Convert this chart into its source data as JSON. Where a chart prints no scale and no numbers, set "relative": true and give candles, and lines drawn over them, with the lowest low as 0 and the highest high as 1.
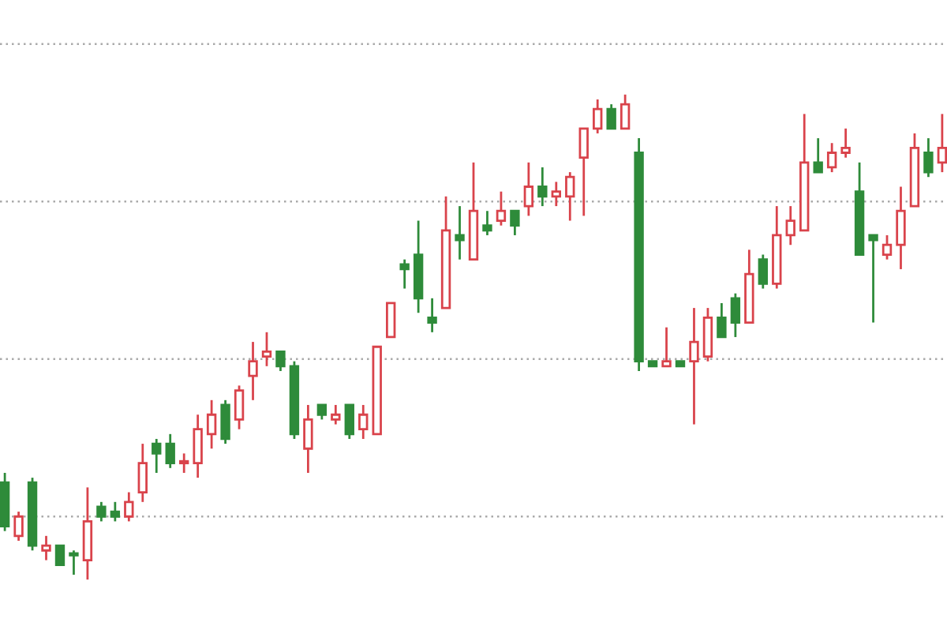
{
  "chart_data": {
    "type": "candlestick",
    "relative": true,
    "grid": true,
    "categories": [
      null,
      null,
      null,
      null,
      null,
      null,
      null,
      null,
      null,
      null,
      null,
      null,
      null,
      null,
      null,
      null,
      null,
      null,
      null,
      null,
      null,
      null,
      null,
      null,
      null,
      null,
      null,
      null,
      null,
      null,
      null,
      null,
      null,
      null,
      null,
      null,
      null,
      null,
      null,
      null,
      null,
      null,
      null,
      null,
      null,
      null,
      null,
      null,
      null,
      null,
      null,
      null,
      null,
      null,
      null,
      null,
      null,
      null,
      null,
      null,
      null,
      null,
      null,
      null,
      null,
      null,
      null,
      null,
      null
    ],
    "ohlc": [
      [
        0.2,
        0.22,
        0.1,
        0.11
      ],
      [
        0.09,
        0.14,
        0.08,
        0.13
      ],
      [
        0.2,
        0.21,
        0.06,
        0.07
      ],
      [
        0.06,
        0.09,
        0.04,
        0.07
      ],
      [
        0.07,
        0.07,
        0.03,
        0.03
      ],
      [
        0.05,
        0.06,
        0.01,
        0.05
      ],
      [
        0.04,
        0.19,
        0.0,
        0.12
      ],
      [
        0.15,
        0.16,
        0.12,
        0.13
      ],
      [
        0.14,
        0.16,
        0.12,
        0.13
      ],
      [
        0.13,
        0.18,
        0.12,
        0.16
      ],
      [
        0.18,
        0.28,
        0.16,
        0.24
      ],
      [
        0.28,
        0.29,
        0.22,
        0.26
      ],
      [
        0.28,
        0.3,
        0.23,
        0.24
      ],
      [
        0.24,
        0.26,
        0.22,
        0.24
      ],
      [
        0.24,
        0.34,
        0.21,
        0.31
      ],
      [
        0.3,
        0.37,
        0.27,
        0.34
      ],
      [
        0.36,
        0.37,
        0.28,
        0.29
      ],
      [
        0.33,
        0.4,
        0.31,
        0.39
      ],
      [
        0.42,
        0.49,
        0.37,
        0.45
      ],
      [
        0.46,
        0.51,
        0.44,
        0.47
      ],
      [
        0.47,
        0.47,
        0.43,
        0.44
      ],
      [
        0.44,
        0.45,
        0.29,
        0.3
      ],
      [
        0.27,
        0.36,
        0.22,
        0.33
      ],
      [
        0.36,
        0.36,
        0.33,
        0.34
      ],
      [
        0.33,
        0.36,
        0.32,
        0.34
      ],
      [
        0.36,
        0.36,
        0.29,
        0.3
      ],
      [
        0.31,
        0.36,
        0.29,
        0.34
      ],
      [
        0.3,
        0.48,
        0.3,
        0.48
      ],
      [
        0.5,
        0.57,
        0.5,
        0.57
      ],
      [
        0.65,
        0.66,
        0.6,
        0.64
      ],
      [
        0.67,
        0.74,
        0.55,
        0.58
      ],
      [
        0.54,
        0.58,
        0.51,
        0.53
      ],
      [
        0.56,
        0.79,
        0.56,
        0.72
      ],
      [
        0.71,
        0.77,
        0.66,
        0.7
      ],
      [
        0.66,
        0.86,
        0.66,
        0.76
      ],
      [
        0.73,
        0.76,
        0.71,
        0.72
      ],
      [
        0.74,
        0.8,
        0.73,
        0.76
      ],
      [
        0.76,
        0.76,
        0.71,
        0.73
      ],
      [
        0.77,
        0.86,
        0.75,
        0.81
      ],
      [
        0.81,
        0.85,
        0.77,
        0.79
      ],
      [
        0.79,
        0.82,
        0.77,
        0.8
      ],
      [
        0.79,
        0.84,
        0.74,
        0.83
      ],
      [
        0.87,
        0.93,
        0.75,
        0.93
      ],
      [
        0.93,
        0.99,
        0.92,
        0.97
      ],
      [
        0.97,
        0.98,
        0.93,
        0.93
      ],
      [
        0.93,
        1.0,
        0.93,
        0.98
      ],
      [
        0.88,
        0.91,
        0.43,
        0.45
      ],
      [
        0.45,
        0.45,
        0.44,
        0.44
      ],
      [
        0.44,
        0.52,
        0.44,
        0.45
      ],
      [
        0.45,
        0.45,
        0.44,
        0.44
      ],
      [
        0.45,
        0.56,
        0.32,
        0.49
      ],
      [
        0.46,
        0.56,
        0.45,
        0.54
      ],
      [
        0.54,
        0.57,
        0.5,
        0.5
      ],
      [
        0.58,
        0.59,
        0.5,
        0.53
      ],
      [
        0.53,
        0.68,
        0.53,
        0.63
      ],
      [
        0.66,
        0.67,
        0.6,
        0.61
      ],
      [
        0.61,
        0.77,
        0.6,
        0.71
      ],
      [
        0.71,
        0.77,
        0.69,
        0.74
      ],
      [
        0.72,
        0.96,
        0.72,
        0.86
      ],
      [
        0.86,
        0.91,
        0.84,
        0.84
      ],
      [
        0.85,
        0.9,
        0.84,
        0.88
      ],
      [
        0.88,
        0.93,
        0.87,
        0.89
      ],
      [
        0.8,
        0.86,
        0.67,
        0.67
      ],
      [
        0.71,
        0.71,
        0.53,
        0.7
      ],
      [
        0.67,
        0.71,
        0.66,
        0.69
      ],
      [
        0.69,
        0.81,
        0.64,
        0.76
      ],
      [
        0.77,
        0.92,
        0.77,
        0.89
      ],
      [
        0.88,
        0.91,
        0.83,
        0.84
      ],
      [
        0.86,
        0.96,
        0.84,
        0.89
      ]
    ],
    "colors": [
      "#2e8b3a",
      "#d9434b",
      "#2e8b3a",
      "#d9434b",
      "#2e8b3a",
      "#2e8b3a",
      "#d9434b",
      "#2e8b3a",
      "#2e8b3a",
      "#d9434b",
      "#d9434b",
      "#2e8b3a",
      "#2e8b3a",
      "#d9434b",
      "#d9434b",
      "#d9434b",
      "#2e8b3a",
      "#d9434b",
      "#d9434b",
      "#d9434b",
      "#2e8b3a",
      "#2e8b3a",
      "#d9434b",
      "#2e8b3a",
      "#d9434b",
      "#2e8b3a",
      "#d9434b",
      "#d9434b",
      "#d9434b",
      "#2e8b3a",
      "#2e8b3a",
      "#2e8b3a",
      "#d9434b",
      "#2e8b3a",
      "#d9434b",
      "#2e8b3a",
      "#d9434b",
      "#2e8b3a",
      "#d9434b",
      "#2e8b3a",
      "#d9434b",
      "#d9434b",
      "#d9434b",
      "#d9434b",
      "#2e8b3a",
      "#d9434b",
      "#2e8b3a",
      "#2e8b3a",
      "#d9434b",
      "#2e8b3a",
      "#d9434b",
      "#d9434b",
      "#2e8b3a",
      "#2e8b3a",
      "#d9434b",
      "#2e8b3a",
      "#d9434b",
      "#d9434b",
      "#d9434b",
      "#2e8b3a",
      "#d9434b",
      "#d9434b",
      "#2e8b3a",
      "#2e8b3a",
      "#d9434b",
      "#d9434b",
      "#d9434b",
      "#2e8b3a",
      "#d9434b"
    ]
  }
}
